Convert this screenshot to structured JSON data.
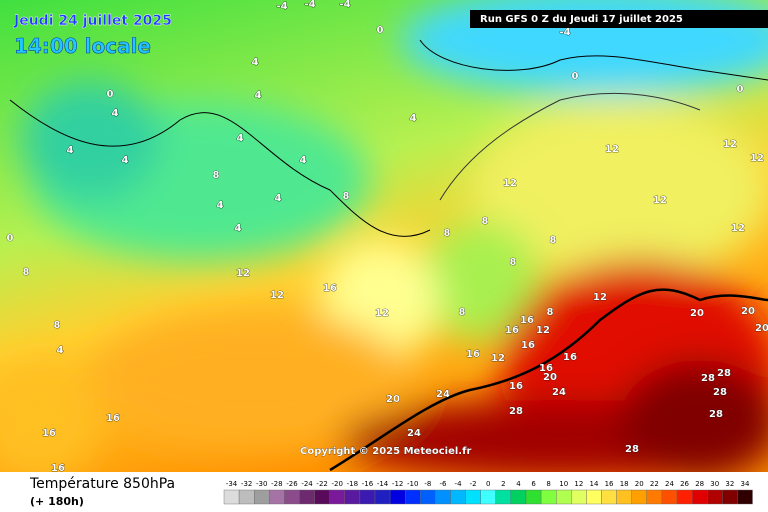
{
  "header": {
    "date": "Jeudi 24 juillet 2025",
    "time": "14:00 locale",
    "run": "Run GFS 0 Z du Jeudi 17 juillet 2025"
  },
  "copyright": "Copyright © 2025 Meteociel.fr",
  "footer": {
    "title": "Température 850hPa",
    "lead": "(+ 180h)"
  },
  "legend": {
    "values": [
      -34,
      -32,
      -30,
      -28,
      -26,
      -24,
      -22,
      -20,
      -18,
      -16,
      -14,
      -12,
      -10,
      -8,
      -6,
      -4,
      -2,
      0,
      2,
      4,
      6,
      8,
      10,
      12,
      14,
      16,
      18,
      20,
      22,
      24,
      26,
      28,
      30,
      32,
      34
    ],
    "colors": [
      "#dcdcdc",
      "#bdbdbd",
      "#9e9e9e",
      "#a673a6",
      "#8c4c8c",
      "#6e2a6e",
      "#5a0a5a",
      "#7a1a9a",
      "#5a1aa0",
      "#3a1ab0",
      "#2020c0",
      "#0000e0",
      "#0030ff",
      "#0060ff",
      "#0090ff",
      "#00b8ff",
      "#00e0ff",
      "#40ffff",
      "#00e0a0",
      "#00d060",
      "#30e030",
      "#80ff40",
      "#b0ff50",
      "#e0ff60",
      "#ffff60",
      "#ffe040",
      "#ffc020",
      "#ffa000",
      "#ff7a00",
      "#ff5000",
      "#ff2000",
      "#e00000",
      "#b00000",
      "#800000",
      "#300000"
    ]
  },
  "contour_labels": [
    "0",
    "0",
    "0",
    "0",
    "-4",
    "-4",
    "-4",
    "-4",
    "0",
    "4",
    "4",
    "4",
    "4",
    "4",
    "4",
    "4",
    "4",
    "4",
    "4",
    "4",
    "4",
    "8",
    "8",
    "8",
    "8",
    "8",
    "8",
    "8",
    "8",
    "8",
    "8",
    "12",
    "12",
    "12",
    "12",
    "12",
    "12",
    "12",
    "12",
    "12",
    "12",
    "12",
    "12",
    "16",
    "16",
    "16",
    "16",
    "16",
    "16",
    "16",
    "16",
    "16",
    "16",
    "16",
    "20",
    "20",
    "20",
    "20",
    "20",
    "24",
    "24",
    "24",
    "28",
    "28",
    "28",
    "28",
    "28",
    "28"
  ]
}
